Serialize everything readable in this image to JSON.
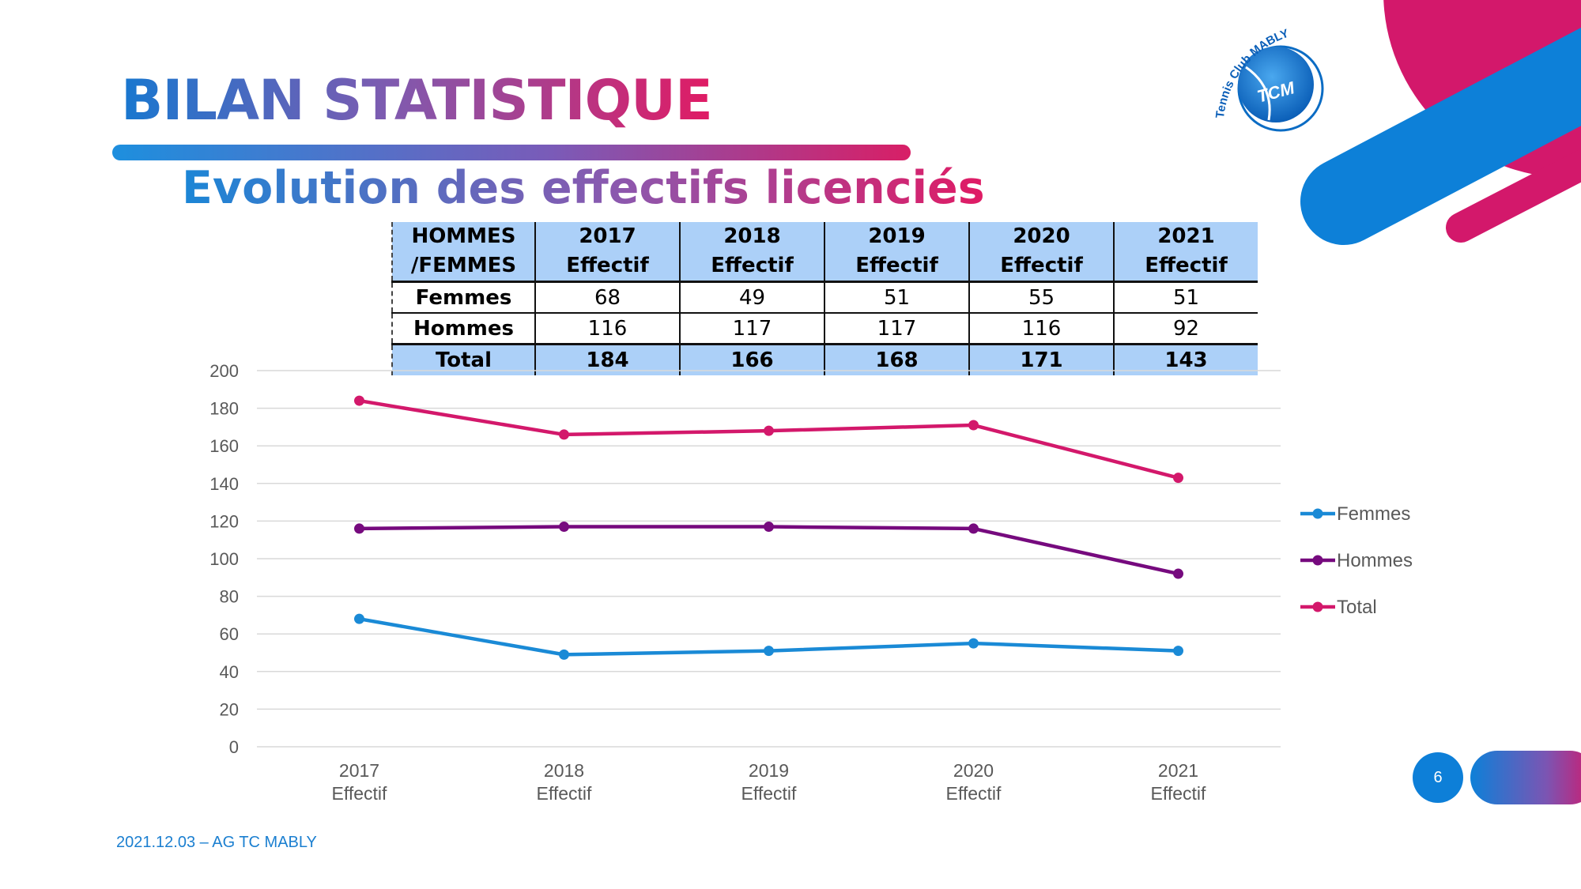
{
  "slide": {
    "title": "BILAN STATISTIQUE",
    "subtitle": "Evolution des effectifs licenciés",
    "footer": "2021.12.03 – AG TC MABLY",
    "page_number": "6"
  },
  "logo": {
    "arc_text": "Tennis Club MABLY",
    "ball_text": "TCM"
  },
  "colors": {
    "femmes": "#1a8ad6",
    "hommes": "#760a7e",
    "total": "#d3186b",
    "header_fill": "#acd0f8",
    "brand_blue": "#0d7fd8",
    "brand_pink": "#d3186b"
  },
  "table": {
    "header_label_line1": "HOMMES",
    "header_label_line2": "/FEMMES",
    "columns": [
      {
        "year": "2017",
        "sub": "Effectif"
      },
      {
        "year": "2018",
        "sub": "Effectif"
      },
      {
        "year": "2019",
        "sub": "Effectif"
      },
      {
        "year": "2020",
        "sub": "Effectif"
      },
      {
        "year": "2021",
        "sub": "Effectif"
      }
    ],
    "rows": [
      {
        "label": "Femmes",
        "values": [
          "68",
          "49",
          "51",
          "55",
          "51"
        ]
      },
      {
        "label": "Hommes",
        "values": [
          "116",
          "117",
          "117",
          "116",
          "92"
        ]
      },
      {
        "label": "Total",
        "values": [
          "184",
          "166",
          "168",
          "171",
          "143"
        ]
      }
    ]
  },
  "chart_data": {
    "type": "line",
    "categories": [
      "2017\nEffectif",
      "2018\nEffectif",
      "2019\nEffectif",
      "2020\nEffectif",
      "2021\nEffectif"
    ],
    "series": [
      {
        "name": "Femmes",
        "values": [
          68,
          49,
          51,
          55,
          51
        ]
      },
      {
        "name": "Hommes",
        "values": [
          116,
          117,
          117,
          116,
          92
        ]
      },
      {
        "name": "Total",
        "values": [
          184,
          166,
          168,
          171,
          143
        ]
      }
    ],
    "ylim": [
      0,
      200
    ],
    "yticks": [
      0,
      20,
      40,
      60,
      80,
      100,
      120,
      140,
      160,
      180,
      200
    ],
    "grid": true,
    "legend_position": "right"
  }
}
